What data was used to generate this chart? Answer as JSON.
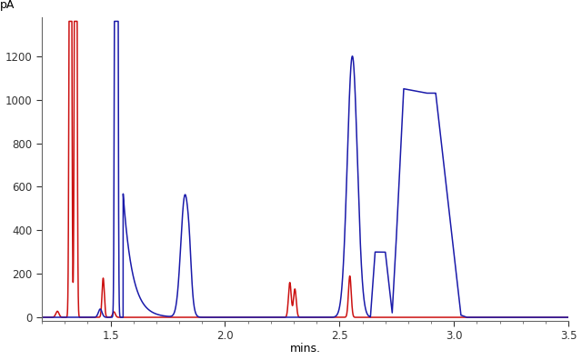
{
  "xlabel": "mins.",
  "ylabel": "pA",
  "xlim": [
    1.2,
    3.5
  ],
  "ylim": [
    -15,
    1380
  ],
  "yticks": [
    0,
    200,
    400,
    600,
    800,
    1000,
    1200
  ],
  "xticks": [
    1.5,
    2.0,
    2.5,
    3.0,
    3.5
  ],
  "bg_color": "#ffffff",
  "blue_color": "#1a1aaa",
  "red_color": "#cc1111",
  "linewidth": 1.1
}
